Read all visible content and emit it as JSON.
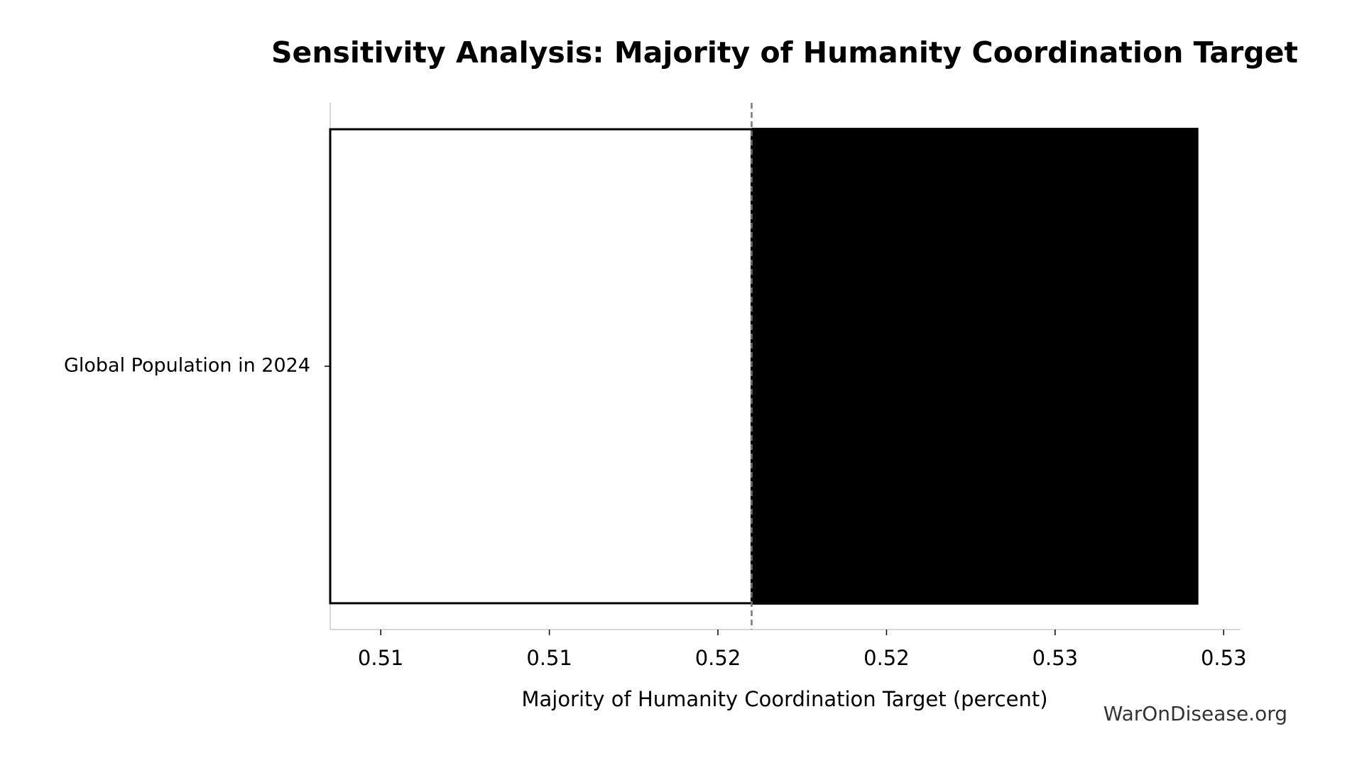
{
  "chart_data": {
    "type": "tornado",
    "title": "Sensitivity Analysis: Majority of Humanity Coordination Target",
    "x_label": "Majority of Humanity Coordination Target (percent)",
    "watermark": "WarOnDisease.org",
    "categories": [
      "Global Population in 2024"
    ],
    "base_value": 0.5188,
    "low_values": [
      0.5088
    ],
    "high_values": [
      0.5294
    ],
    "low_color": "#ffffff",
    "high_color": "#000000",
    "xlim": [
      0.5088,
      0.5304
    ],
    "xticks": [
      {
        "value": 0.51,
        "label": "0.51"
      },
      {
        "value": 0.514,
        "label": "0.51"
      },
      {
        "value": 0.518,
        "label": "0.52"
      },
      {
        "value": 0.522,
        "label": "0.52"
      },
      {
        "value": 0.526,
        "label": "0.53"
      },
      {
        "value": 0.53,
        "label": "0.53"
      }
    ]
  }
}
